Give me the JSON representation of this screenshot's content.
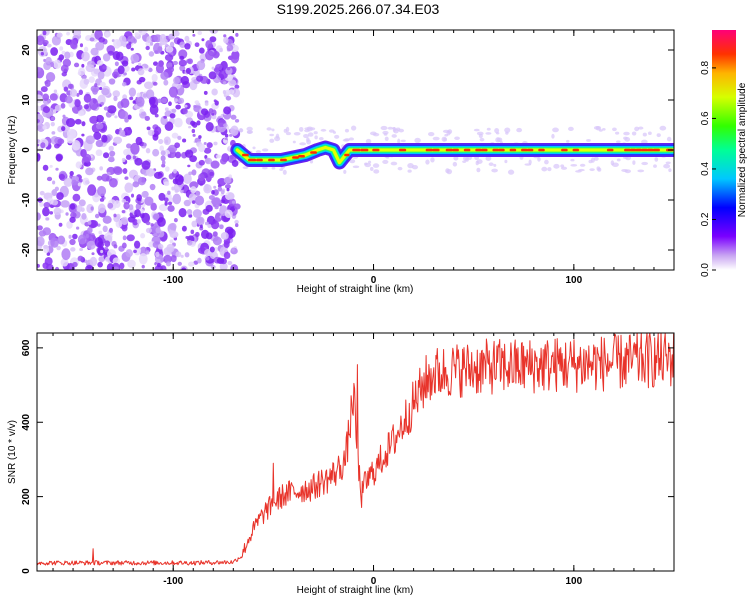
{
  "title": "S199.2025.266.07.34.E03",
  "chart_data": [
    {
      "type": "heatmap",
      "name": "spectrogram",
      "xlabel": "Height of straight line (km)",
      "ylabel": "Frequency (Hz)",
      "xlim": [
        -168,
        150
      ],
      "ylim": [
        -24,
        24
      ],
      "xticks": [
        -100,
        0,
        100
      ],
      "yticks": [
        -20,
        -10,
        0,
        10,
        20
      ],
      "noise_region_x": [
        -168,
        -68
      ],
      "signal_track": {
        "x": [
          -68,
          -65,
          -62,
          -58,
          -52,
          -46,
          -40,
          -34,
          -28,
          -24,
          -20,
          -17,
          -14,
          -12,
          -10,
          -6,
          -2,
          0,
          10,
          20,
          30,
          40,
          60,
          80,
          100,
          120,
          140,
          150
        ],
        "y": [
          0,
          -1,
          -2,
          -2,
          -2,
          -2,
          -1.5,
          -1,
          0,
          0.5,
          0,
          -2.5,
          -1,
          0,
          0,
          0,
          0,
          0,
          0,
          0,
          0,
          0,
          0,
          0,
          0,
          0,
          0,
          0
        ]
      },
      "colorbar": {
        "label": "Normalized spectral amplitude",
        "range": [
          0,
          0.95
        ],
        "ticks": [
          "0.0",
          "0.2",
          "0.4",
          "0.6",
          "0.8"
        ]
      }
    },
    {
      "type": "line",
      "name": "snr",
      "xlabel": "Height of straight line (km)",
      "ylabel": "SNR (10 * v/v)",
      "xlim": [
        -168,
        150
      ],
      "ylim": [
        0,
        640
      ],
      "xticks": [
        -100,
        0,
        100
      ],
      "yticks": [
        0,
        200,
        400,
        600
      ],
      "color": "#e8332a",
      "series": [
        {
          "name": "SNR",
          "x": [
            -168,
            -150,
            -130,
            -110,
            -90,
            -70,
            -66,
            -62,
            -58,
            -54,
            -50,
            -46,
            -42,
            -38,
            -34,
            -30,
            -26,
            -22,
            -18,
            -14,
            -12,
            -10,
            -8,
            -6,
            -4,
            -2,
            0,
            2,
            4,
            6,
            8,
            10,
            14,
            18,
            22,
            26,
            30,
            40,
            50,
            60,
            70,
            80,
            90,
            100,
            110,
            120,
            130,
            140,
            150
          ],
          "y": [
            22,
            22,
            22,
            22,
            22,
            24,
            40,
            90,
            130,
            160,
            180,
            200,
            210,
            215,
            220,
            225,
            240,
            250,
            270,
            300,
            380,
            480,
            300,
            200,
            240,
            250,
            270,
            280,
            300,
            320,
            330,
            350,
            390,
            430,
            470,
            510,
            530,
            540,
            545,
            550,
            550,
            552,
            555,
            555,
            558,
            560,
            565,
            568,
            570
          ]
        }
      ],
      "spikes": [
        {
          "x": -140,
          "y": 60
        },
        {
          "x": -50,
          "y": 290
        },
        {
          "x": -8,
          "y": 555
        },
        {
          "x": 138,
          "y": 640
        }
      ]
    }
  ]
}
